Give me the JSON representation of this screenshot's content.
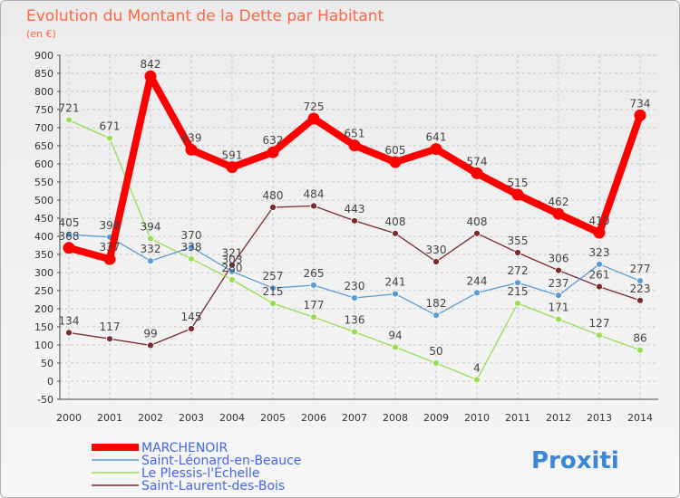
{
  "chart_data": {
    "type": "line",
    "title": "Evolution du Montant de la Dette par Habitant",
    "subtitle": "(en €)",
    "x": [
      "2000",
      "2001",
      "2002",
      "2003",
      "2004",
      "2005",
      "2006",
      "2007",
      "2008",
      "2009",
      "2010",
      "2011",
      "2012",
      "2013",
      "2014"
    ],
    "ylim": [
      -50,
      900
    ],
    "yticks": [
      -50,
      0,
      50,
      100,
      150,
      200,
      250,
      300,
      350,
      400,
      450,
      500,
      550,
      600,
      650,
      700,
      750,
      800,
      850,
      900
    ],
    "grid": true,
    "legend_position": "bottom-left",
    "series": [
      {
        "name": "MARCHENOIR",
        "color": "#ff0000",
        "values": [
          368,
          337,
          842,
          639,
          591,
          632,
          725,
          651,
          605,
          641,
          574,
          515,
          462,
          410,
          734
        ]
      },
      {
        "name": "Saint-Léonard-en-Beauce",
        "color": "#5b9bd5",
        "values": [
          405,
          398,
          332,
          370,
          303,
          257,
          265,
          230,
          241,
          182,
          244,
          272,
          237,
          323,
          277
        ]
      },
      {
        "name": "Le Plessis-l'Échelle",
        "color": "#99dd55",
        "values": [
          721,
          671,
          394,
          338,
          280,
          215,
          177,
          136,
          94,
          50,
          4,
          215,
          171,
          127,
          86
        ]
      },
      {
        "name": "Saint-Laurent-des-Bois",
        "color": "#7a2a2a",
        "values": [
          134,
          117,
          99,
          145,
          321,
          480,
          484,
          443,
          408,
          330,
          408,
          355,
          306,
          261,
          223
        ]
      }
    ]
  },
  "logo": {
    "text": "Proxiti"
  }
}
